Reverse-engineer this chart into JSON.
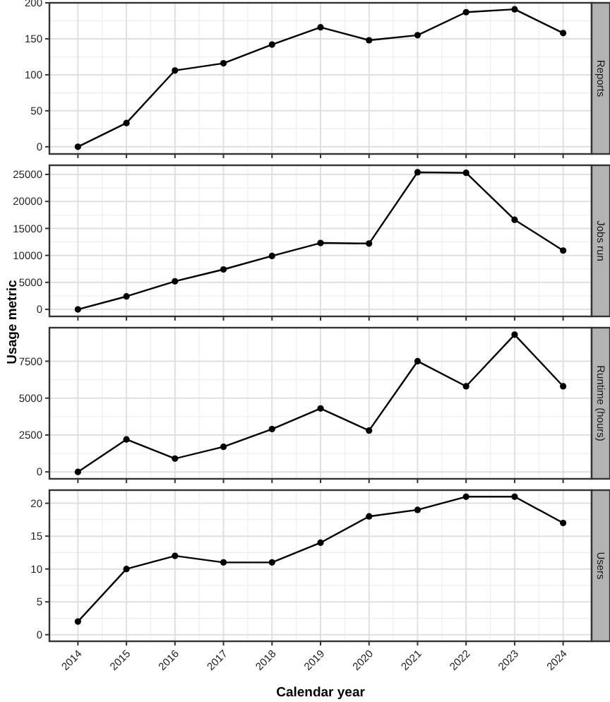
{
  "chart_data": [
    {
      "type": "line",
      "title": "Reports",
      "categories": [
        "2014",
        "2015",
        "2016",
        "2017",
        "2018",
        "2019",
        "2020",
        "2021",
        "2022",
        "2023",
        "2024"
      ],
      "values": [
        0,
        33,
        106,
        116,
        142,
        166,
        148,
        155,
        187,
        191,
        158
      ],
      "color": "#000000",
      "ylim": [
        -10,
        200
      ],
      "yticks": [
        0,
        50,
        100,
        150,
        200
      ],
      "grid": true,
      "marker": "circle",
      "tick_labels": "y"
    },
    {
      "type": "line",
      "title": "Jobs run",
      "ylabel": "Usage metric",
      "categories": [
        "2014",
        "2015",
        "2016",
        "2017",
        "2018",
        "2019",
        "2020",
        "2021",
        "2022",
        "2023",
        "2024"
      ],
      "values": [
        0,
        2400,
        5200,
        7400,
        9900,
        12300,
        12200,
        25400,
        25300,
        16600,
        10900
      ],
      "color": "#000000",
      "ylim": [
        -1300,
        26700
      ],
      "yticks": [
        0,
        5000,
        10000,
        15000,
        20000,
        25000
      ],
      "grid": true,
      "marker": "circle",
      "tick_labels": "y"
    },
    {
      "type": "line",
      "title": "Runtime (hours)",
      "categories": [
        "2014",
        "2015",
        "2016",
        "2017",
        "2018",
        "2019",
        "2020",
        "2021",
        "2022",
        "2023",
        "2024"
      ],
      "values": [
        0,
        2200,
        900,
        1700,
        2900,
        4300,
        2800,
        7500,
        5800,
        9300,
        5800
      ],
      "color": "#000000",
      "ylim": [
        -470,
        9770
      ],
      "yticks": [
        0,
        2500,
        5000,
        7500
      ],
      "grid": true,
      "marker": "circle",
      "tick_labels": "y"
    },
    {
      "type": "line",
      "title": "Users",
      "xlabel": "Calendar year",
      "categories": [
        "2014",
        "2015",
        "2016",
        "2017",
        "2018",
        "2019",
        "2020",
        "2021",
        "2022",
        "2023",
        "2024"
      ],
      "values": [
        2,
        10,
        12,
        11,
        11,
        14,
        18,
        19,
        21,
        21,
        17
      ],
      "color": "#000000",
      "ylim": [
        -1,
        22
      ],
      "yticks": [
        0,
        5,
        10,
        15,
        20
      ],
      "grid": true,
      "marker": "circle"
    }
  ]
}
